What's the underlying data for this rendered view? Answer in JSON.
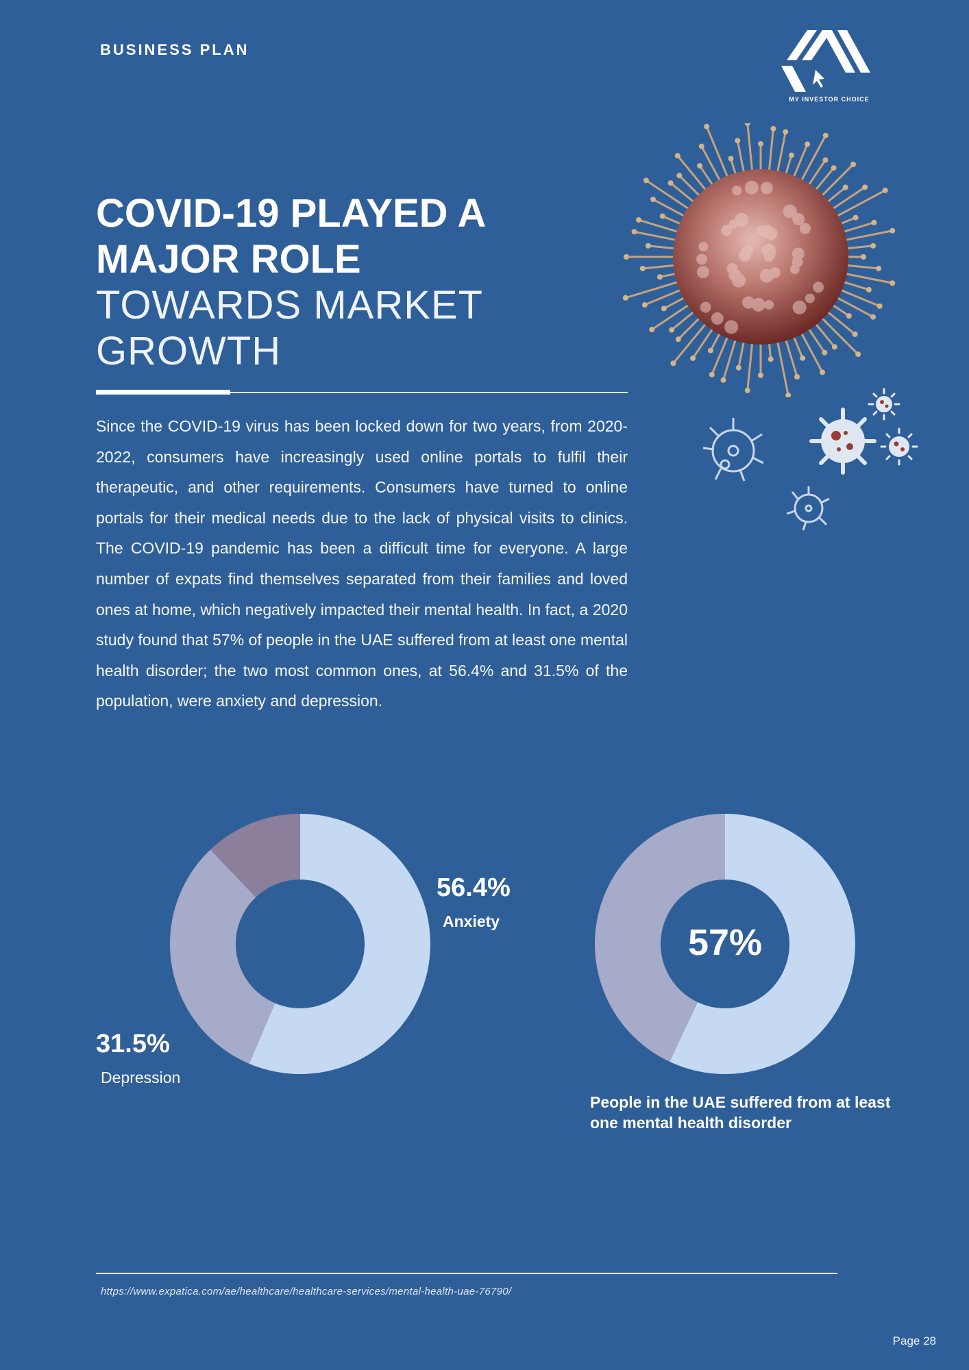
{
  "header": {
    "section_label": "BUSINESS PLAN",
    "logo_text": "MY INVESTOR CHOICE"
  },
  "title": {
    "line1": "COVID-19 PLAYED A",
    "line2": "MAJOR ROLE",
    "line3": "TOWARDS MARKET",
    "line4": "GROWTH"
  },
  "body": "Since the COVID-19 virus has been locked down for two years, from 2020-2022, consumers have increasingly used online portals to fulfil their therapeutic, and other requirements. Consumers have turned to online portals for their medical needs due to the lack of physical visits to clinics. The COVID-19 pandemic has been a difficult time for everyone. A large number of expats find themselves separated from their families and loved ones at home, which negatively impacted their mental health. In fact, a 2020 study found that 57% of people in the UAE suffered from at least one mental health disorder; the two most common ones, at 56.4% and 31.5% of the population, were anxiety and depression.",
  "colors": {
    "background": "#2f5f98",
    "slice_light": "#c5d9f2",
    "slice_mid": "#a7abca",
    "slice_dark": "#8b7f9b"
  },
  "chart_data": [
    {
      "type": "pie",
      "slices": [
        {
          "name": "Anxiety",
          "value": 56.4,
          "label": "56.4%",
          "color": "#c5d9f2"
        },
        {
          "name": "Depression",
          "value": 31.5,
          "label": "31.5%",
          "color": "#a7abca"
        },
        {
          "value": 12.1,
          "color": "#8b7f9b"
        }
      ]
    },
    {
      "type": "pie",
      "center_label": "57%",
      "caption": "People in the UAE suffered from at least one mental health disorder",
      "slices": [
        {
          "value": 57,
          "color": "#c5d9f2"
        },
        {
          "value": 43,
          "color": "#a7abca"
        }
      ]
    }
  ],
  "footer": {
    "source": "https://www.expatica.com/ae/healthcare/healthcare-services/mental-health-uae-76790/",
    "page_label": "Page  28"
  }
}
